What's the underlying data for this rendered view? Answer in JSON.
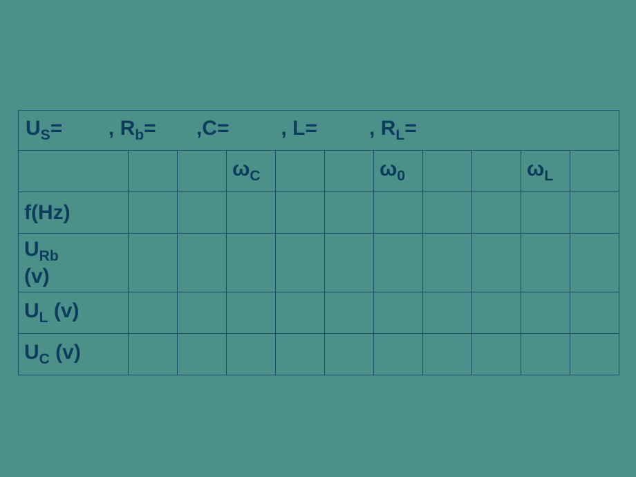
{
  "header": {
    "us_label": "U",
    "us_sub": "S",
    "eq1": "=",
    "rb_label": ", R",
    "rb_sub": "b",
    "eq2": "=",
    "c_label": ",C=",
    "l_label": ", L=",
    "rl_label": ", R",
    "rl_sub": "L",
    "eq3": "="
  },
  "row2": {
    "wc": "ω",
    "wc_sub": "C",
    "w0": "ω",
    "w0_sub": "0",
    "wl": "ω",
    "wl_sub": "L"
  },
  "rows": {
    "f": "f(Hz)",
    "urb_main": "U",
    "urb_sub": "Rb",
    "urb_unit": "(v)",
    "ul_main": "U",
    "ul_sub": "L",
    "ul_unit": " (v)",
    "uc_main": "U",
    "uc_sub": "C",
    "uc_unit": " (v)"
  },
  "style": {
    "background": "#4b9189",
    "border": "#1a4d66",
    "text": "#0d3b5c"
  }
}
